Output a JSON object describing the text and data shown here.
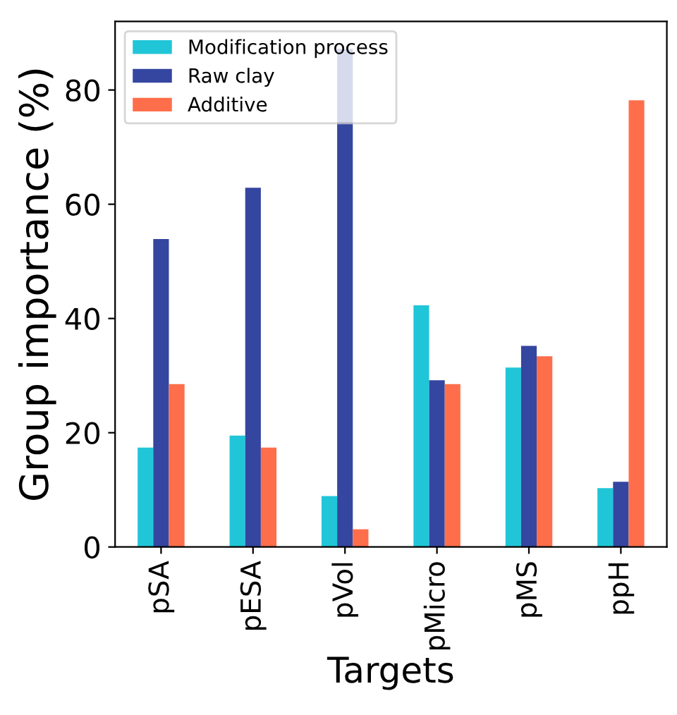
{
  "chart_data": {
    "type": "bar",
    "xlabel": "Targets",
    "ylabel": "Group importance (%)",
    "categories": [
      "pSA",
      "pESA",
      "pVol",
      "pMicro",
      "pMS",
      "ppH"
    ],
    "series": [
      {
        "name": "Modification process",
        "color": "#20c6d8",
        "values": [
          17.4,
          19.5,
          8.9,
          42.3,
          31.4,
          10.3
        ]
      },
      {
        "name": "Raw clay",
        "color": "#3446a0",
        "values": [
          53.9,
          62.9,
          87.2,
          29.2,
          35.2,
          11.4
        ]
      },
      {
        "name": "Additive",
        "color": "#ff6e4a",
        "values": [
          28.5,
          17.4,
          3.1,
          28.5,
          33.4,
          78.2
        ]
      }
    ],
    "ylim": [
      0,
      92
    ],
    "yticks": [
      0,
      20,
      40,
      60,
      80
    ],
    "grid": false,
    "legend": "top left"
  }
}
